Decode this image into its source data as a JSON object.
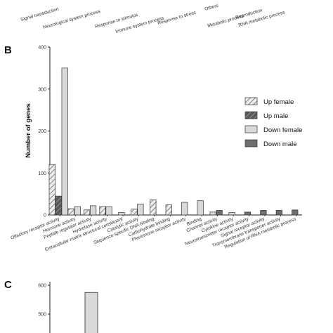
{
  "panel_a_categories": [
    "Signal transduction",
    "Neurological system process",
    "Response to stimulus",
    "Immune system process",
    "Response to stress",
    "Others",
    "Metabolic process",
    "Reproduction",
    "RNA metabolic process"
  ],
  "chart_data": [
    {
      "panel": "B",
      "type": "bar",
      "ylabel": "Number of genes",
      "ylim": [
        0,
        400
      ],
      "yticks": [
        0,
        100,
        200,
        300,
        400
      ],
      "legend_position": "right",
      "categories": [
        "Olfactory receptor activity",
        "Hormone activity",
        "Peptide regulator activity",
        "Hydrolase activity",
        "Extracellular matrix structural constituent",
        "Catalytic activity",
        "Sequence-specific DNA binding",
        "Carbohydrate binding",
        "Pheromone receptor activity",
        "Binding",
        "Channel activity",
        "Cytokine activity",
        "Neurotransmitter receptor activity",
        "Signal receptor activity",
        "Transmembrane transporter activity",
        "Regulation of RNA metabolic process"
      ],
      "series": [
        {
          "name": "Up female",
          "color": "#e6e6e6",
          "pattern": "hatch-light",
          "values": [
            120,
            15,
            12,
            20,
            0,
            14,
            36,
            24,
            0,
            0,
            0,
            0,
            0,
            0,
            0,
            0
          ]
        },
        {
          "name": "Up male",
          "color": "#6e6e6e",
          "pattern": "hatch-dark",
          "values": [
            45,
            0,
            0,
            0,
            0,
            0,
            0,
            0,
            0,
            0,
            0,
            0,
            0,
            0,
            0,
            0
          ]
        },
        {
          "name": "Down female",
          "color": "#d9d9d9",
          "pattern": "solid",
          "values": [
            350,
            20,
            22,
            20,
            6,
            26,
            0,
            0,
            30,
            34,
            7,
            6,
            0,
            0,
            0,
            0
          ]
        },
        {
          "name": "Down male",
          "color": "#6e6e6e",
          "pattern": "solid",
          "values": [
            0,
            0,
            0,
            0,
            0,
            0,
            0,
            0,
            0,
            0,
            11,
            0,
            7,
            11,
            11,
            12
          ]
        }
      ]
    },
    {
      "panel": "C",
      "type": "bar",
      "ylim_visible": [
        400,
        600
      ],
      "yticks": [
        500,
        600
      ],
      "values_visible": [
        {
          "series": "Down female",
          "value": 575
        }
      ]
    }
  ]
}
